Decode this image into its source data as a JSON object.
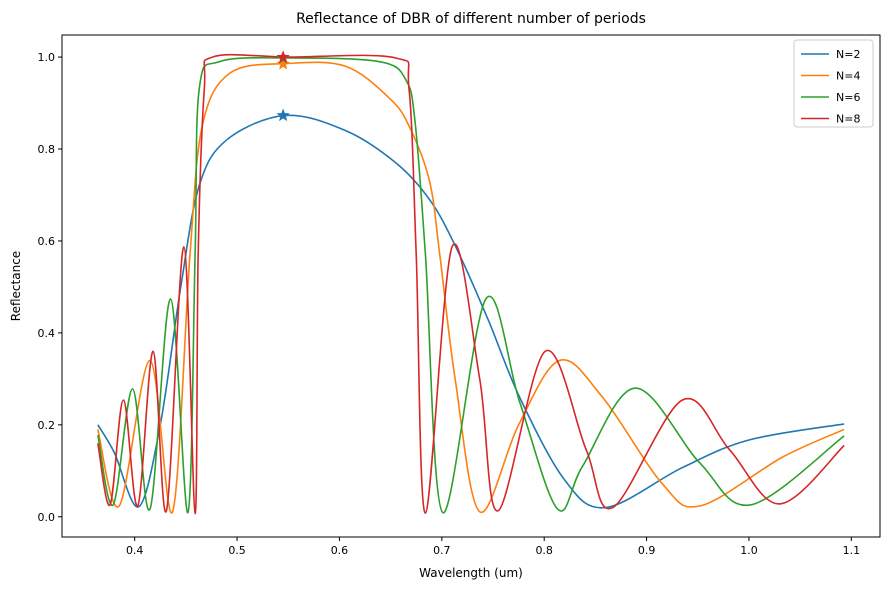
{
  "chart_data": {
    "type": "line",
    "title": "Reflectance of DBR of different number of periods",
    "xlabel": "Wavelength (um)",
    "ylabel": "Reflectance",
    "xlim": [
      0.329,
      1.128
    ],
    "ylim": [
      -0.044,
      1.048
    ],
    "xticks": [
      0.4,
      0.5,
      0.6,
      0.7,
      0.8,
      0.9,
      1.0,
      1.1
    ],
    "xtick_labels": [
      "0.4",
      "0.5",
      "0.6",
      "0.7",
      "0.8",
      "0.9",
      "1.0",
      "1.1"
    ],
    "yticks": [
      0.0,
      0.2,
      0.4,
      0.6,
      0.8,
      1.0
    ],
    "ytick_labels": [
      "0.0",
      "0.2",
      "0.4",
      "0.6",
      "0.8",
      "1.0"
    ],
    "grid": false,
    "legend_position": "top-right",
    "series": [
      {
        "name": "N=2",
        "color": "#1f77b4",
        "points": [
          [
            0.364,
            0.2
          ],
          [
            0.38,
            0.14
          ],
          [
            0.404,
            0.022
          ],
          [
            0.425,
            0.2
          ],
          [
            0.445,
            0.5
          ],
          [
            0.463,
            0.72
          ],
          [
            0.49,
            0.82
          ],
          [
            0.547,
            0.873
          ],
          [
            0.606,
            0.84
          ],
          [
            0.655,
            0.77
          ],
          [
            0.688,
            0.69
          ],
          [
            0.713,
            0.59
          ],
          [
            0.745,
            0.43
          ],
          [
            0.776,
            0.26
          ],
          [
            0.82,
            0.08
          ],
          [
            0.86,
            0.02
          ],
          [
            0.935,
            0.107
          ],
          [
            1.0,
            0.167
          ],
          [
            1.093,
            0.202
          ]
        ],
        "marker": [
          0.545,
          0.873
        ]
      },
      {
        "name": "N=4",
        "color": "#ff7f0e",
        "points": [
          [
            0.364,
            0.19
          ],
          [
            0.385,
            0.024
          ],
          [
            0.415,
            0.34
          ],
          [
            0.437,
            0.011
          ],
          [
            0.454,
            0.57
          ],
          [
            0.466,
            0.85
          ],
          [
            0.493,
            0.965
          ],
          [
            0.549,
            0.986
          ],
          [
            0.606,
            0.98
          ],
          [
            0.649,
            0.91
          ],
          [
            0.668,
            0.85
          ],
          [
            0.688,
            0.73
          ],
          [
            0.698,
            0.57
          ],
          [
            0.713,
            0.3
          ],
          [
            0.737,
            0.011
          ],
          [
            0.775,
            0.2
          ],
          [
            0.815,
            0.34
          ],
          [
            0.857,
            0.26
          ],
          [
            0.916,
            0.07
          ],
          [
            0.953,
            0.024
          ],
          [
            1.033,
            0.13
          ],
          [
            1.093,
            0.19
          ]
        ],
        "marker": [
          0.545,
          0.985
        ]
      },
      {
        "name": "N=6",
        "color": "#2ca02c",
        "points": [
          [
            0.364,
            0.178
          ],
          [
            0.379,
            0.026
          ],
          [
            0.398,
            0.278
          ],
          [
            0.415,
            0.017
          ],
          [
            0.435,
            0.474
          ],
          [
            0.452,
            0.009
          ],
          [
            0.459,
            0.57
          ],
          [
            0.463,
            0.93
          ],
          [
            0.483,
            0.99
          ],
          [
            0.549,
            0.998
          ],
          [
            0.639,
            0.99
          ],
          [
            0.665,
            0.95
          ],
          [
            0.674,
            0.856
          ],
          [
            0.684,
            0.57
          ],
          [
            0.701,
            0.009
          ],
          [
            0.743,
            0.474
          ],
          [
            0.776,
            0.25
          ],
          [
            0.813,
            0.017
          ],
          [
            0.8375,
            0.11
          ],
          [
            0.889,
            0.28
          ],
          [
            0.952,
            0.117
          ],
          [
            1.002,
            0.026
          ],
          [
            1.093,
            0.176
          ]
        ],
        "marker": [
          0.545,
          0.998
        ]
      },
      {
        "name": "N=8",
        "color": "#d62728",
        "points": [
          [
            0.364,
            0.16
          ],
          [
            0.376,
            0.026
          ],
          [
            0.389,
            0.254
          ],
          [
            0.403,
            0.024
          ],
          [
            0.418,
            0.36
          ],
          [
            0.431,
            0.013
          ],
          [
            0.448,
            0.587
          ],
          [
            0.459,
            0.007
          ],
          [
            0.462,
            0.57
          ],
          [
            0.468,
            0.93
          ],
          [
            0.476,
            1.0
          ],
          [
            0.549,
            1.0
          ],
          [
            0.655,
            0.998
          ],
          [
            0.668,
            0.93
          ],
          [
            0.675,
            0.57
          ],
          [
            0.684,
            0.008
          ],
          [
            0.71,
            0.587
          ],
          [
            0.737,
            0.3
          ],
          [
            0.755,
            0.013
          ],
          [
            0.801,
            0.36
          ],
          [
            0.841,
            0.146
          ],
          [
            0.867,
            0.02
          ],
          [
            0.935,
            0.254
          ],
          [
            0.981,
            0.146
          ],
          [
            1.03,
            0.028
          ],
          [
            1.093,
            0.155
          ]
        ],
        "marker": [
          0.545,
          0.9995
        ]
      }
    ]
  }
}
